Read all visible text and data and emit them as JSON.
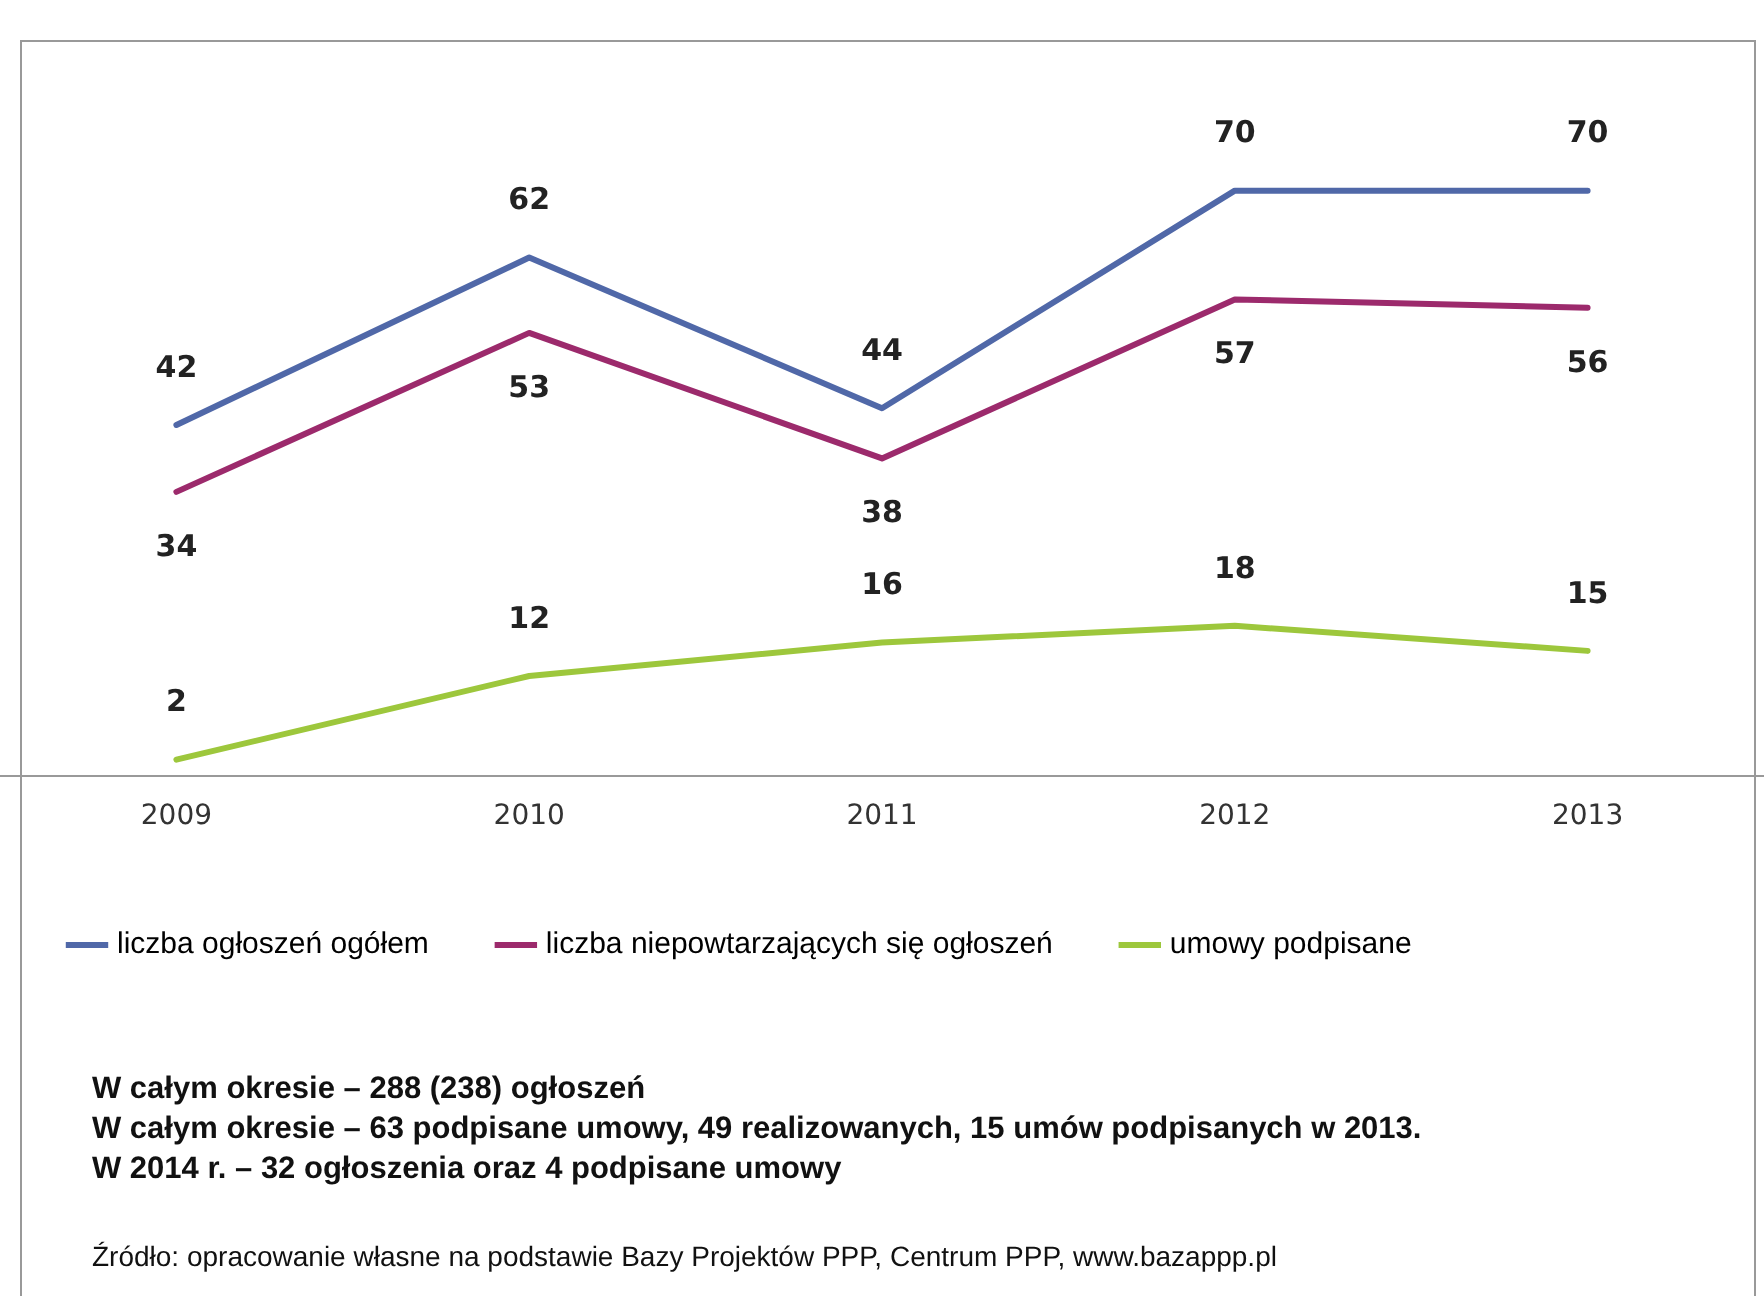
{
  "chart_data": {
    "type": "line",
    "categories": [
      "2009",
      "2010",
      "2011",
      "2012",
      "2013"
    ],
    "series": [
      {
        "name": "liczba ogłoszeń ogółem",
        "color": "#5068a8",
        "values": [
          42,
          62,
          44,
          70,
          70
        ]
      },
      {
        "name": "liczba niepowtarzających się ogłoszeń",
        "color": "#9c2a6c",
        "values": [
          34,
          53,
          38,
          57,
          56
        ]
      },
      {
        "name": "umowy podpisane",
        "color": "#9dc73c",
        "values": [
          2,
          12,
          16,
          18,
          15
        ]
      }
    ],
    "ylim": [
      0,
      88
    ],
    "tick_labels": "x",
    "grid": false,
    "legend": "bottom",
    "marker": "none",
    "line_style": "solid",
    "data_labels": true,
    "annotations": [
      "W całym okresie – 288 (238) ogłoszeń",
      "W całym okresie – 63 podpisane umowy, 49 realizowanych, 15 umów podpisanych w 2013.",
      "W 2014 r. – 32 ogłoszenia oraz 4 podpisane umowy",
      "Źródło: opracowanie własne na podstawie Bazy Projektów PPP, Centrum PPP, www.bazappp.pl"
    ]
  }
}
